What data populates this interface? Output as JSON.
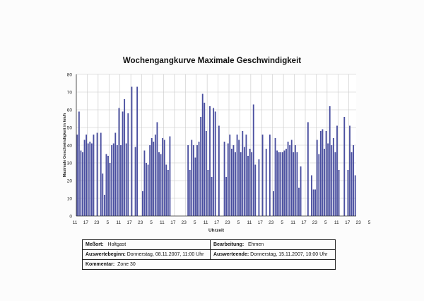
{
  "chart_data": {
    "type": "bar",
    "title": "Wochengangkurve Maximale Geschwindigkeit",
    "xlabel": "Uhrzeit",
    "ylabel": "Maximale Geschwindigkeit in km/h",
    "ylim": [
      0,
      80
    ],
    "yticks": [
      0,
      10,
      20,
      30,
      40,
      50,
      60,
      70,
      80
    ],
    "xtick_labels": [
      "11",
      "17",
      "23",
      "5",
      "11",
      "17",
      "23",
      "5",
      "11",
      "17",
      "23",
      "5",
      "11",
      "17",
      "23",
      "5",
      "11",
      "17",
      "23",
      "5",
      "11",
      "17",
      "23",
      "5",
      "11",
      "17",
      "23",
      "5"
    ],
    "grid": true,
    "color": "#4a4fa0",
    "values": [
      46,
      59,
      37,
      36,
      43,
      46,
      41,
      42,
      41,
      46,
      0,
      47,
      0,
      47,
      24,
      12,
      35,
      34,
      30,
      40,
      41,
      47,
      40,
      61,
      40,
      59,
      66,
      41,
      58,
      0,
      73,
      0,
      39,
      73,
      0,
      0,
      14,
      37,
      30,
      29,
      40,
      44,
      42,
      46,
      53,
      36,
      35,
      44,
      43,
      29,
      26,
      45,
      0,
      0,
      0,
      0,
      0,
      0,
      0,
      0,
      0,
      40,
      26,
      43,
      40,
      33,
      40,
      42,
      56,
      69,
      64,
      48,
      26,
      62,
      22,
      61,
      59,
      0,
      51,
      0,
      0,
      42,
      22,
      41,
      46,
      38,
      40,
      36,
      46,
      43,
      36,
      48,
      39,
      46,
      34,
      38,
      36,
      63,
      29,
      0,
      32,
      0,
      46,
      0,
      38,
      0,
      46,
      0,
      14,
      44,
      37,
      36,
      36,
      36,
      37,
      38,
      42,
      40,
      43,
      36,
      40,
      36,
      16,
      28,
      0,
      0,
      0,
      53,
      0,
      23,
      15,
      15,
      43,
      35,
      48,
      49,
      38,
      48,
      41,
      62,
      40,
      44,
      36,
      51,
      26,
      0,
      0,
      56,
      0,
      26,
      51,
      36,
      40,
      23
    ]
  },
  "info": {
    "messort_label": "Meßort:",
    "messort_value": "Holtgast",
    "bearbeitung_label": "Bearbeitung:",
    "bearbeitung_value": "Ehmen",
    "beginn_label": "Auswertebeginn:",
    "beginn_value": "Donnerstag, 08.11.2007, 11:00 Uhr",
    "ende_label": "Auswerteende:",
    "ende_value": "Donnerstag, 15.11.2007, 10:00 Uhr",
    "kommentar_label": "Kommentar:",
    "kommentar_value": "Zone 30"
  }
}
